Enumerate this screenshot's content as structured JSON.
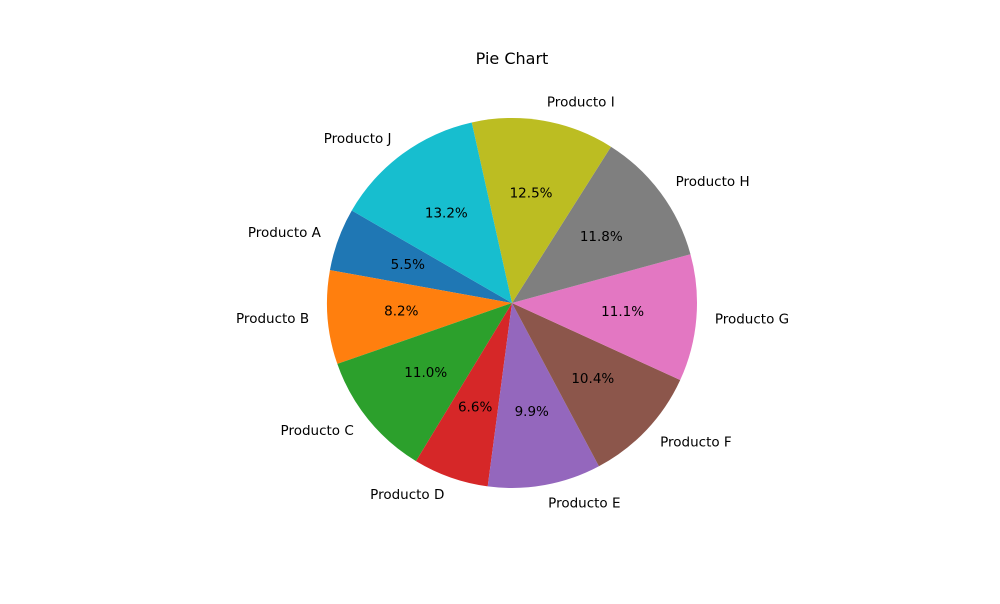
{
  "chart_data": {
    "type": "pie",
    "title": "Pie Chart",
    "labels": [
      "Producto A",
      "Producto B",
      "Producto C",
      "Producto D",
      "Producto E",
      "Producto F",
      "Producto G",
      "Producto H",
      "Producto I",
      "Producto J"
    ],
    "values": [
      5.5,
      8.2,
      11.0,
      6.6,
      9.9,
      10.4,
      11.1,
      11.8,
      12.5,
      13.2
    ],
    "percent_labels": [
      "5.5%",
      "8.2%",
      "11.0%",
      "6.6%",
      "9.9%",
      "10.4%",
      "11.1%",
      "11.8%",
      "12.5%",
      "13.2%"
    ],
    "colors": [
      "#1f77b4",
      "#ff7f0e",
      "#2ca02c",
      "#d62728",
      "#9467bd",
      "#8c564b",
      "#e377c2",
      "#7f7f7f",
      "#bcbd22",
      "#17becf"
    ],
    "start_angle_deg": 150,
    "direction": "counterclockwise"
  }
}
